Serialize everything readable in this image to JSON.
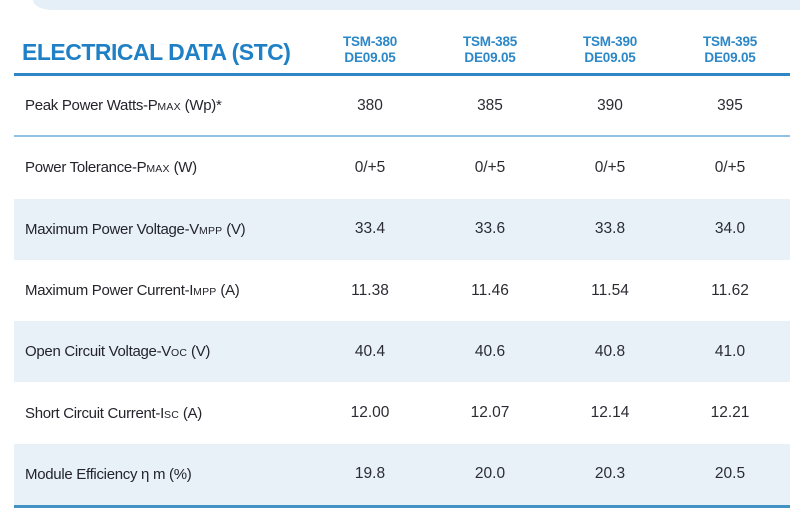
{
  "colors": {
    "title_blue": "#1f80c5",
    "column_header_blue": "#2b87c7",
    "header_rule_blue": "#2e86c4",
    "bottom_rule_blue": "#4292c6",
    "row_separator_blue": "#8fc1e0",
    "shaded_row_bg": "#e8f1f8",
    "top_band_bg": "#e5eff7",
    "body_text": "#24242c",
    "page_bg": "#ffffff"
  },
  "header": {
    "title": "ELECTRICAL DATA (STC)",
    "columns": [
      {
        "model": "TSM-380",
        "version": "DE09.05"
      },
      {
        "model": "TSM-385",
        "version": "DE09.05"
      },
      {
        "model": "TSM-390",
        "version": "DE09.05"
      },
      {
        "model": "TSM-395",
        "version": "DE09.05"
      }
    ]
  },
  "table": {
    "rows": [
      {
        "label_parts": [
          {
            "t": "Peak Power Watts-P"
          },
          {
            "t": "MAX",
            "sc": true
          },
          {
            "t": " (Wp)*"
          }
        ],
        "label_plain": "Peak Power Watts-PMAX (Wp)*",
        "values": [
          "380",
          "385",
          "390",
          "395"
        ],
        "shaded": false,
        "separator_below": true
      },
      {
        "label_parts": [
          {
            "t": "Power Tolerance-P"
          },
          {
            "t": "MAX",
            "sc": true
          },
          {
            "t": " (W)"
          }
        ],
        "label_plain": "Power Tolerance-PMAX (W)",
        "values": [
          "0/+5",
          "0/+5",
          "0/+5",
          "0/+5"
        ],
        "shaded": false,
        "separator_below": false
      },
      {
        "label_parts": [
          {
            "t": "Maximum Power Voltage-V"
          },
          {
            "t": "MPP",
            "sc": true
          },
          {
            "t": " (V)"
          }
        ],
        "label_plain": "Maximum Power Voltage-VMPP (V)",
        "values": [
          "33.4",
          "33.6",
          "33.8",
          "34.0"
        ],
        "shaded": true,
        "separator_below": false
      },
      {
        "label_parts": [
          {
            "t": "Maximum Power Current-I"
          },
          {
            "t": "MPP",
            "sc": true
          },
          {
            "t": " (A)"
          }
        ],
        "label_plain": "Maximum Power Current-IMPP (A)",
        "values": [
          "11.38",
          "11.46",
          "11.54",
          "11.62"
        ],
        "shaded": false,
        "separator_below": false
      },
      {
        "label_parts": [
          {
            "t": "Open Circuit Voltage-V"
          },
          {
            "t": "OC",
            "sc": true
          },
          {
            "t": " (V)"
          }
        ],
        "label_plain": "Open Circuit Voltage-VOC (V)",
        "values": [
          "40.4",
          "40.6",
          "40.8",
          "41.0"
        ],
        "shaded": true,
        "separator_below": false
      },
      {
        "label_parts": [
          {
            "t": "Short Circuit Current-I"
          },
          {
            "t": "SC",
            "sc": true
          },
          {
            "t": " (A)"
          }
        ],
        "label_plain": "Short Circuit Current-ISC (A)",
        "values": [
          "12.00",
          "12.07",
          "12.14",
          "12.21"
        ],
        "shaded": false,
        "separator_below": false
      },
      {
        "label_parts": [
          {
            "t": "Module Efficiency η m (%)"
          }
        ],
        "label_plain": "Module Efficiency η m (%)",
        "values": [
          "19.8",
          "20.0",
          "20.3",
          "20.5"
        ],
        "shaded": true,
        "separator_below": false
      }
    ]
  }
}
